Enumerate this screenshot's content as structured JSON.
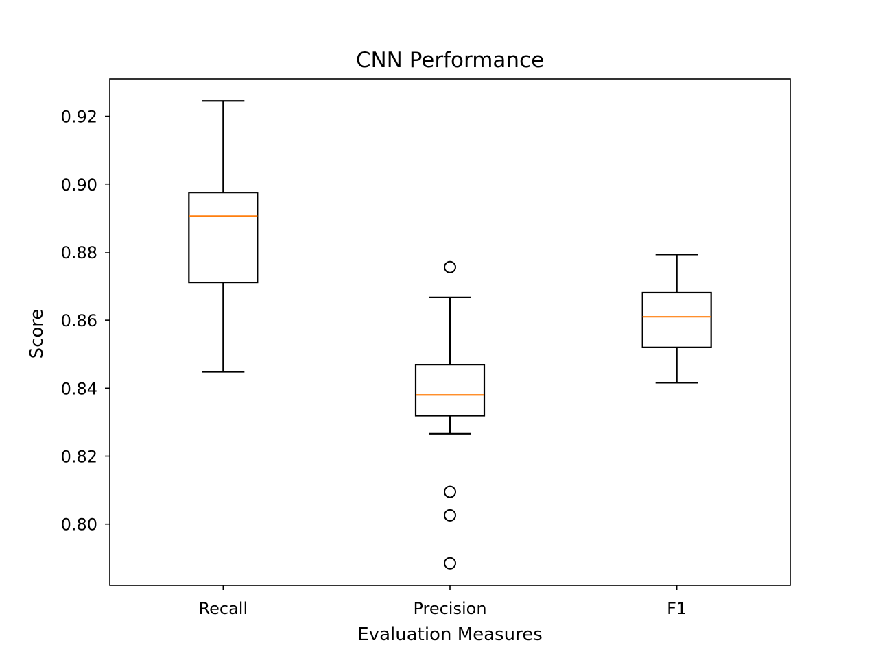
{
  "chart_data": {
    "type": "box",
    "title": "CNN Performance",
    "xlabel": "Evaluation Measures",
    "ylabel": "Score",
    "ylim": [
      0.782,
      0.931
    ],
    "yticks": [
      0.8,
      0.82,
      0.84,
      0.86,
      0.88,
      0.9,
      0.92
    ],
    "ytick_labels": [
      "0.80",
      "0.82",
      "0.84",
      "0.86",
      "0.88",
      "0.90",
      "0.92"
    ],
    "categories": [
      "Recall",
      "Precision",
      "F1"
    ],
    "boxes": [
      {
        "name": "Recall",
        "whisker_low": 0.8448,
        "q1": 0.8711,
        "median": 0.8906,
        "q3": 0.8975,
        "whisker_high": 0.9245,
        "outliers": []
      },
      {
        "name": "Precision",
        "whisker_low": 0.8266,
        "q1": 0.8319,
        "median": 0.838,
        "q3": 0.8469,
        "whisker_high": 0.8667,
        "outliers": [
          0.8756,
          0.8095,
          0.8026,
          0.7885
        ]
      },
      {
        "name": "F1",
        "whisker_low": 0.8416,
        "q1": 0.852,
        "median": 0.861,
        "q3": 0.8681,
        "whisker_high": 0.8793,
        "outliers": []
      }
    ],
    "grid": false,
    "colors": {
      "box": "#000000",
      "median": "#ff7f0e",
      "outlier": "#000000"
    }
  }
}
